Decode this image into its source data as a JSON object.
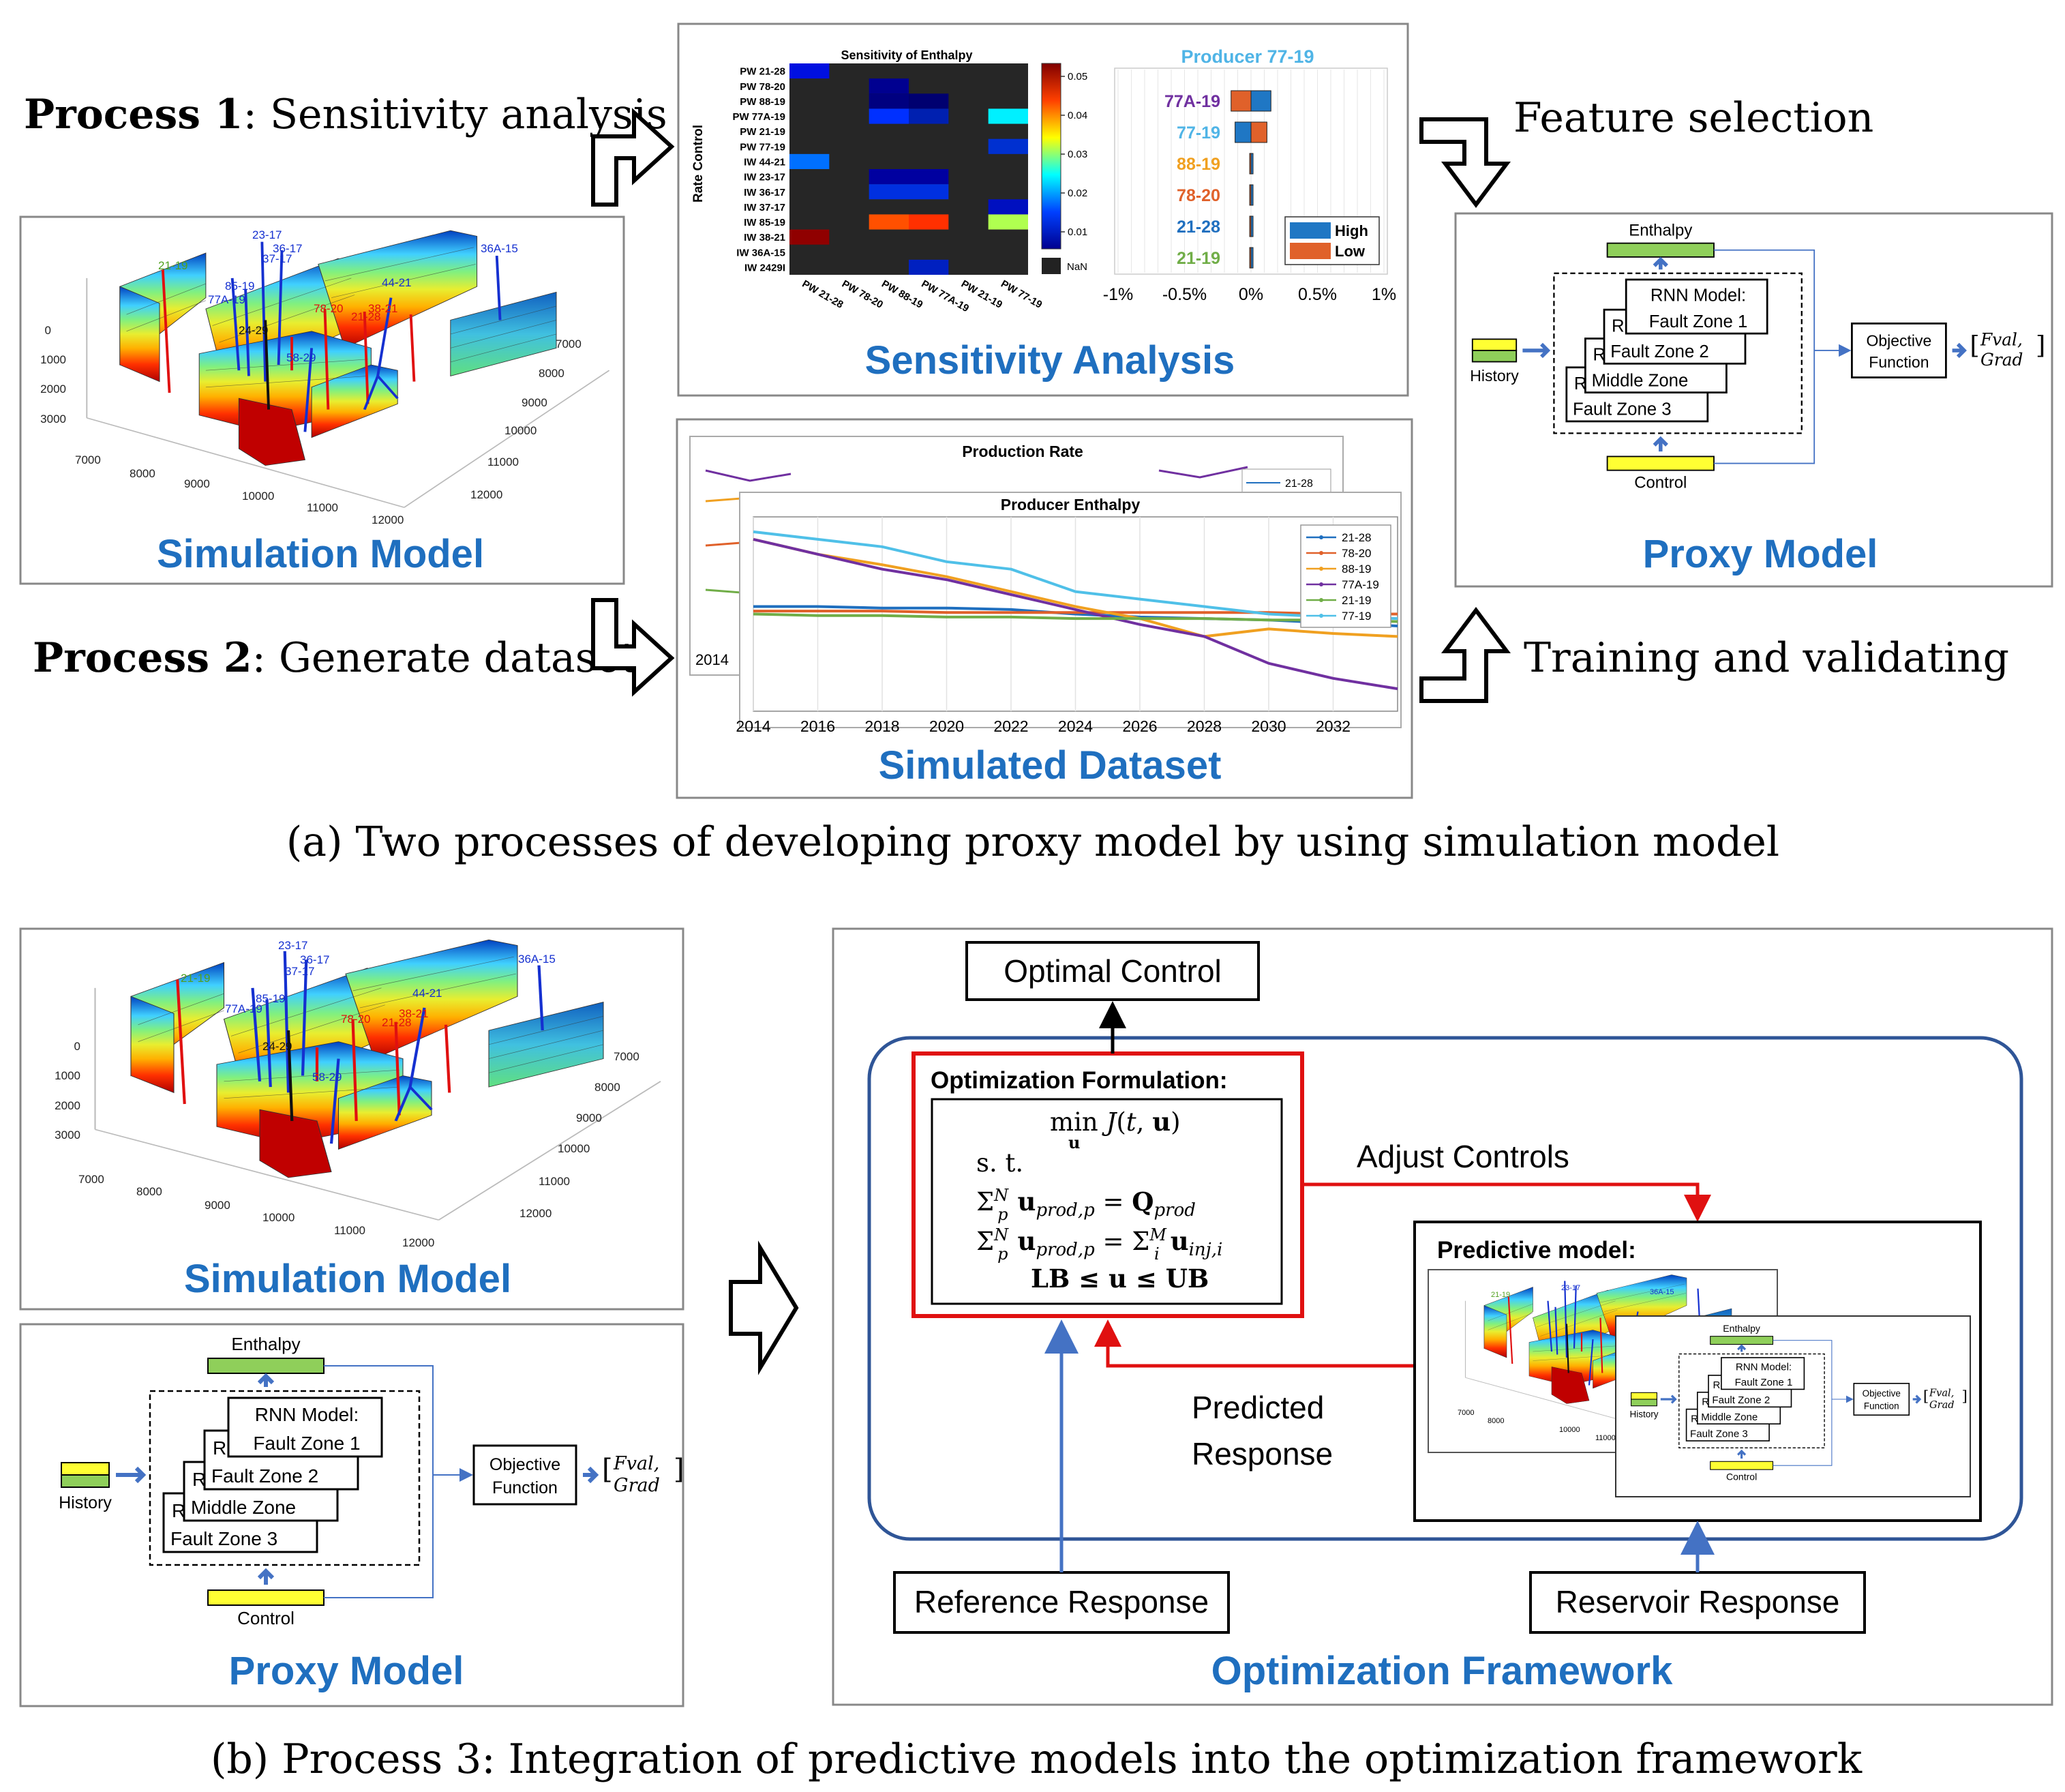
{
  "colors": {
    "title_blue": "#1f6fbf",
    "enthalpy_green": "#8fcf5a",
    "history_yellow": "#ffff33",
    "arrow_blue": "#4472c4",
    "red": "#e01010",
    "frame_blue": "#2f5597",
    "bar_blue": "#1f77c4",
    "bar_orange": "#e0612a"
  },
  "part_a": {
    "process1_bold": "Process 1",
    "process1_rest": ": Sensitivity analysis",
    "process2_bold": "Process 2",
    "process2_rest": ": Generate dataset",
    "feature_selection": "Feature selection",
    "training": "Training and validating",
    "caption": "(a) Two processes of developing proxy model by using simulation model"
  },
  "part_b": {
    "caption": "(b) Process 3:  Integration of predictive models into the optimization framework"
  },
  "simulation_model": {
    "title": "Simulation Model",
    "z_ticks": [
      "0",
      "1000",
      "2000",
      "3000"
    ],
    "x_ticks": [
      "7000",
      "8000",
      "9000",
      "10000",
      "11000",
      "12000"
    ],
    "y_ticks": [
      "7000",
      "8000",
      "9000",
      "10000",
      "11000",
      "12000"
    ],
    "well_labels": {
      "green": [
        "21-19"
      ],
      "blue": [
        "23-17",
        "36-17",
        "37-17",
        "85-19",
        "77A-19",
        "44-21",
        "36A-15",
        "58-29"
      ],
      "red": [
        "21-28",
        "38-21",
        "78-20"
      ],
      "black": [
        "24-29"
      ]
    }
  },
  "sensitivity": {
    "title": "Sensitivity Analysis",
    "heatmap_title": "Sensitivity of Enthalpy",
    "heatmap_ylabel": "Rate Control",
    "rows": [
      "PW 21-28",
      "PW 78-20",
      "PW 88-19",
      "PW 77A-19",
      "PW 21-19",
      "PW 77-19",
      "IW 44-21",
      "IW 23-17",
      "IW 36-17",
      "IW 37-17",
      "IW 85-19",
      "IW 38-21",
      "IW 36A-15",
      "IW 2429I"
    ],
    "cols": [
      "PW 21-28",
      "PW 78-20",
      "PW 88-19",
      "PW 77A-19",
      "PW 21-19",
      "PW 77-19"
    ],
    "colorbar_ticks": [
      "0.05",
      "0.04",
      "0.03",
      "0.02",
      "0.01"
    ],
    "nan_label": "NaN",
    "tornado_title": "Producer 77-19",
    "tornado_categories": [
      "77A-19",
      "77-19",
      "88-19",
      "78-20",
      "21-28",
      "21-19"
    ],
    "tornado_category_colors": [
      "#7030a0",
      "#4fb4e6",
      "#f0a020",
      "#e0612a",
      "#1f6fbf",
      "#70ad47"
    ],
    "tornado_high": [
      0.15,
      -0.12,
      0.01,
      0.01,
      0.01,
      0.01
    ],
    "tornado_low": [
      -0.15,
      0.12,
      -0.01,
      -0.01,
      -0.01,
      -0.01
    ],
    "tornado_xticks": [
      "-1%",
      "-0.5%",
      "0%",
      "0.5%",
      "1%"
    ],
    "legend_high": "High",
    "legend_low": "Low"
  },
  "chart_data": {
    "type": "line",
    "title": "Producer Enthalpy",
    "x": [
      2014,
      2016,
      2018,
      2020,
      2022,
      2024,
      2026,
      2028,
      2030,
      2032,
      2034
    ],
    "xticks": [
      "2014",
      "2016",
      "2018",
      "2020",
      "2022",
      "2024",
      "2026",
      "2028",
      "2030",
      "2032"
    ],
    "series": [
      {
        "name": "21-28",
        "color": "#1f6fbf",
        "values": [
          1.0,
          1.0,
          0.99,
          0.99,
          0.98,
          0.95,
          0.93,
          0.92,
          0.91,
          0.89,
          0.87
        ]
      },
      {
        "name": "78-20",
        "color": "#e0612a",
        "values": [
          0.97,
          0.97,
          0.97,
          0.96,
          0.96,
          0.96,
          0.96,
          0.96,
          0.96,
          0.95,
          0.95
        ]
      },
      {
        "name": "88-19",
        "color": "#f0a020",
        "values": [
          1.45,
          1.35,
          1.28,
          1.2,
          1.1,
          1.0,
          0.92,
          0.8,
          0.85,
          0.82,
          0.8
        ]
      },
      {
        "name": "77A-19",
        "color": "#7030a0",
        "values": [
          1.45,
          1.35,
          1.25,
          1.18,
          1.08,
          0.98,
          0.88,
          0.8,
          0.62,
          0.52,
          0.45
        ]
      },
      {
        "name": "21-19",
        "color": "#70ad47",
        "values": [
          0.95,
          0.94,
          0.94,
          0.93,
          0.93,
          0.92,
          0.92,
          0.92,
          0.91,
          0.91,
          0.9
        ]
      },
      {
        "name": "77-19",
        "color": "#4fc0e8",
        "values": [
          1.5,
          1.45,
          1.4,
          1.3,
          1.25,
          1.1,
          1.05,
          1.0,
          0.95,
          0.93,
          0.92
        ]
      }
    ],
    "ylim": [
      0.3,
      1.6
    ]
  },
  "back_chart": {
    "title": "Production Rate",
    "legend_first": "21-28",
    "first_tick": "2014"
  },
  "simulated_dataset": {
    "title": "Simulated Dataset"
  },
  "proxy": {
    "title": "Proxy Model",
    "enthalpy": "Enthalpy",
    "history": "History",
    "control": "Control",
    "rnn_head": "RNN Model:",
    "rnn_stub": "RN",
    "zones": [
      "Fault Zone 1",
      "Fault Zone 2",
      "Middle Zone",
      "Fault Zone 3"
    ],
    "objective_line1": "Objective",
    "objective_line2": "Function",
    "fval": "Fval,",
    "grad": "Grad"
  },
  "optimization": {
    "title": "Optimization Framework",
    "optimal_control": "Optimal Control",
    "formulation_title": "Optimization Formulation:",
    "formula_lines": [
      "min J(t, u)",
      "s. t.",
      "Σ u_prod,p = Q_prod",
      "Σ u_prod,p = Σ u_inj,i",
      "LB ≤ u ≤ UB"
    ],
    "adjust_controls": "Adjust Controls",
    "predicted_line1": "Predicted",
    "predicted_line2": "Response",
    "predictive_model": "Predictive model:",
    "reference_response": "Reference Response",
    "reservoir_response": "Reservoir Response"
  }
}
